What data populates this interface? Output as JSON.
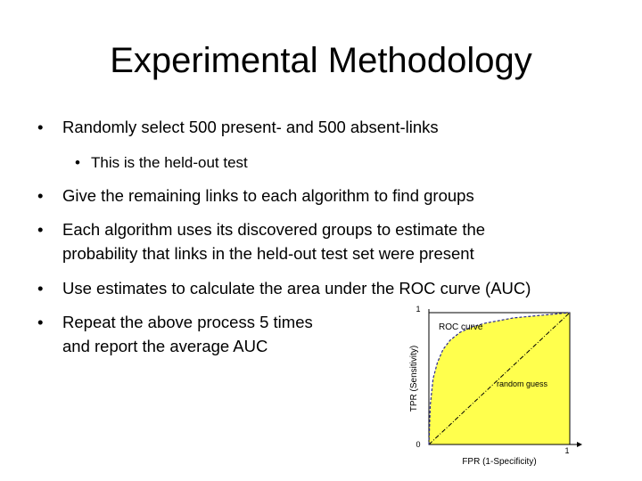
{
  "slide": {
    "title": "Experimental Methodology",
    "bullets": [
      "Randomly select 500 present- and 500 absent-links",
      "This is the held-out test",
      "Give the remaining links to each algorithm to find groups",
      [
        "Each algorithm uses its discovered groups to estimate the",
        "probability that links in the held-out test set were present"
      ],
      "Use estimates to calculate the area under the ROC curve (AUC)",
      [
        "Repeat the above process 5 times",
        "and report the average AUC"
      ]
    ],
    "bullet_glyph": "•"
  },
  "chart_data": {
    "type": "line",
    "xlabel": "FPR (1-Specificity)",
    "ylabel": "TPR (Sensitivity)",
    "xlim": [
      0,
      1
    ],
    "ylim": [
      0,
      1
    ],
    "x_ticks": [
      "0",
      "1"
    ],
    "y_ticks": [
      "0",
      "1"
    ],
    "grid": false,
    "fill_color": "#ffff4d",
    "curve_color": "#2b2b8f",
    "series": [
      {
        "name": "ROC curve",
        "x": [
          0,
          0.01,
          0.03,
          0.06,
          0.1,
          0.15,
          0.22,
          0.3,
          0.4,
          0.5,
          0.6,
          0.7,
          0.8,
          0.9,
          1
        ],
        "y": [
          0,
          0.3,
          0.5,
          0.62,
          0.72,
          0.79,
          0.85,
          0.89,
          0.92,
          0.94,
          0.96,
          0.97,
          0.98,
          0.99,
          1
        ]
      },
      {
        "name": "random guess",
        "x": [
          0,
          1
        ],
        "y": [
          0,
          1
        ]
      }
    ],
    "annotations": [
      "ROC curve",
      "random guess"
    ]
  }
}
